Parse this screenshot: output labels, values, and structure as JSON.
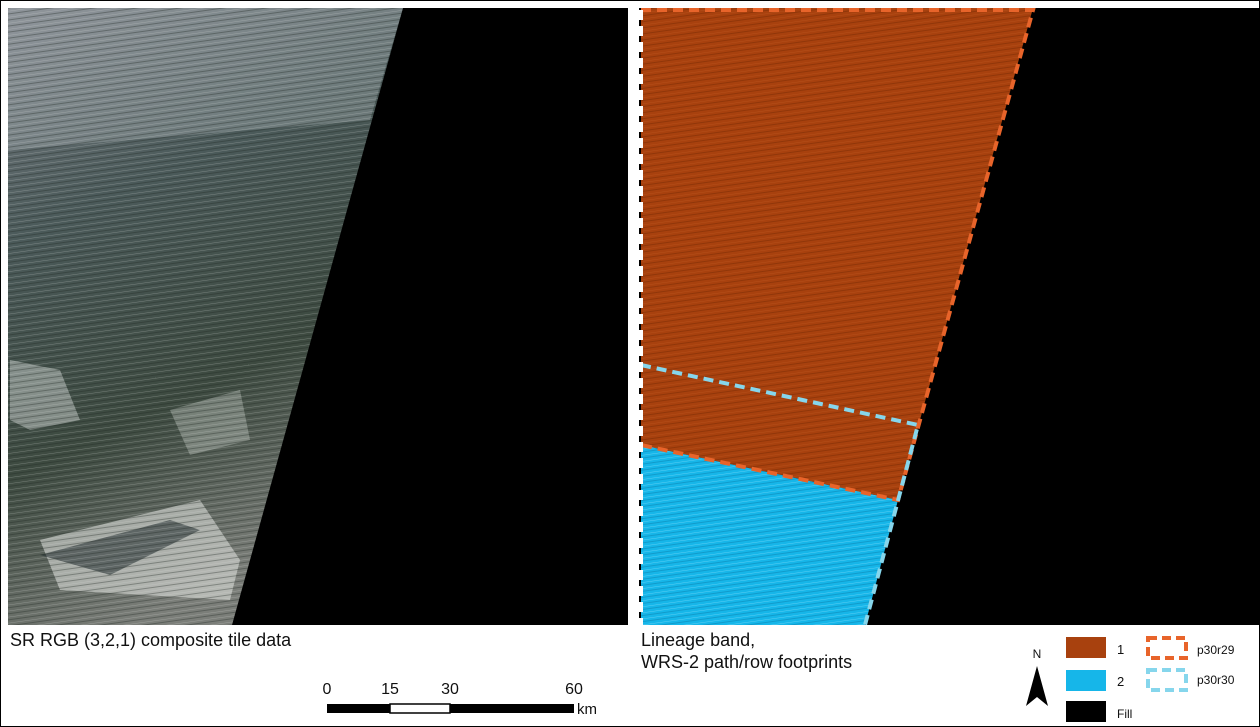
{
  "left_panel": {
    "caption": "SR RGB (3,2,1) composite tile data"
  },
  "right_panel": {
    "caption_line1": "Lineage band,",
    "caption_line2": "WRS-2 path/row footprints"
  },
  "scale_bar": {
    "ticks": [
      "0",
      "15",
      "30",
      "60"
    ],
    "unit": "km"
  },
  "north_arrow": {
    "label": "N"
  },
  "legend": {
    "items": [
      {
        "label": "1",
        "color": "#a8410e"
      },
      {
        "label": "2",
        "color": "#16b6e9"
      },
      {
        "label": "Fill",
        "color": "#000000"
      }
    ],
    "footprints": [
      {
        "label": "p30r29",
        "color": "#e8642a"
      },
      {
        "label": "p30r30",
        "color": "#86d6ec"
      }
    ]
  },
  "colors": {
    "fill": "#000000",
    "lineage_1": "#a8410e",
    "lineage_2": "#16b6e9"
  }
}
